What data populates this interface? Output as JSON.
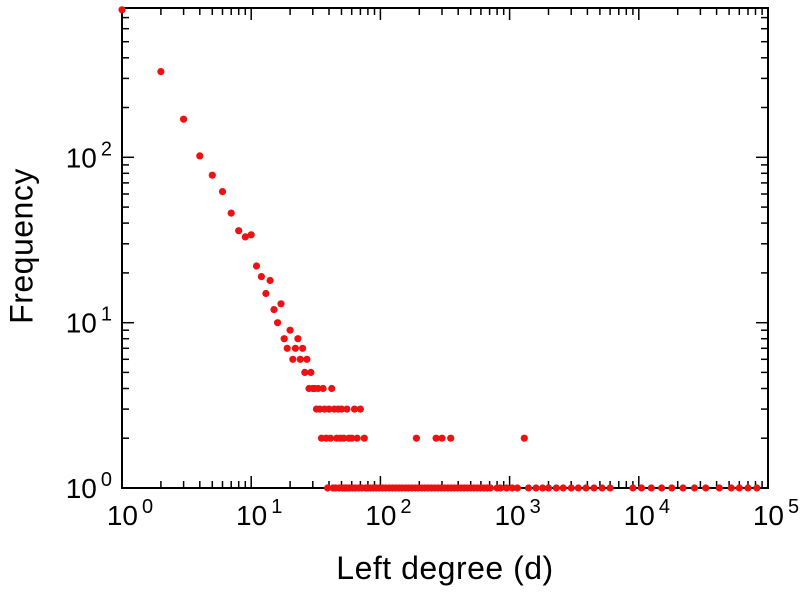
{
  "figure": {
    "background": "#ffffff"
  },
  "chart_data": {
    "type": "scatter",
    "title": "",
    "xlabel": "Left degree (d)",
    "ylabel": "Frequency",
    "x_scale": "log",
    "y_scale": "log",
    "xlim": [
      1,
      100000
    ],
    "ylim": [
      1,
      800
    ],
    "grid": false,
    "legend": "none",
    "x_tick_exponents": [
      0,
      1,
      2,
      3,
      4,
      5
    ],
    "y_tick_exponents": [
      0,
      1,
      2
    ],
    "tick_label_base": "10",
    "axis_color": "#000000",
    "marker": {
      "shape": "circle",
      "color": "#ee1111",
      "radius": 3.6
    },
    "points": [
      [
        1,
        780
      ],
      [
        2,
        330
      ],
      [
        3,
        170
      ],
      [
        4,
        102
      ],
      [
        5,
        78
      ],
      [
        6,
        62
      ],
      [
        7,
        46
      ],
      [
        8,
        36
      ],
      [
        9,
        33
      ],
      [
        10,
        34
      ],
      [
        11,
        22
      ],
      [
        12,
        19
      ],
      [
        13,
        15
      ],
      [
        14,
        18
      ],
      [
        15,
        12
      ],
      [
        16,
        10
      ],
      [
        17,
        13
      ],
      [
        18,
        8
      ],
      [
        19,
        7
      ],
      [
        20,
        9
      ],
      [
        21,
        6
      ],
      [
        22,
        7
      ],
      [
        23,
        8
      ],
      [
        24,
        6
      ],
      [
        25,
        7
      ],
      [
        26,
        5
      ],
      [
        27,
        6
      ],
      [
        28,
        4
      ],
      [
        29,
        5
      ],
      [
        30,
        4
      ],
      [
        31,
        4
      ],
      [
        32,
        3
      ],
      [
        33,
        4
      ],
      [
        34,
        3
      ],
      [
        35,
        2
      ],
      [
        36,
        4
      ],
      [
        37,
        3
      ],
      [
        38,
        2
      ],
      [
        39,
        1
      ],
      [
        40,
        3
      ],
      [
        41,
        2
      ],
      [
        42,
        4
      ],
      [
        43,
        1
      ],
      [
        44,
        3
      ],
      [
        45,
        1
      ],
      [
        46,
        2
      ],
      [
        47,
        3
      ],
      [
        48,
        1
      ],
      [
        49,
        2
      ],
      [
        50,
        3
      ],
      [
        51,
        1
      ],
      [
        52,
        2
      ],
      [
        53,
        1
      ],
      [
        54,
        1
      ],
      [
        55,
        3
      ],
      [
        56,
        1
      ],
      [
        57,
        2
      ],
      [
        58,
        1
      ],
      [
        60,
        2
      ],
      [
        61,
        1
      ],
      [
        63,
        3
      ],
      [
        64,
        1
      ],
      [
        66,
        2
      ],
      [
        68,
        1
      ],
      [
        70,
        3
      ],
      [
        72,
        1
      ],
      [
        75,
        2
      ],
      [
        77,
        1
      ],
      [
        80,
        1
      ],
      [
        84,
        1
      ],
      [
        88,
        1
      ],
      [
        93,
        1
      ],
      [
        98,
        1
      ],
      [
        104,
        1
      ],
      [
        110,
        1
      ],
      [
        117,
        1
      ],
      [
        124,
        1
      ],
      [
        131,
        1
      ],
      [
        139,
        1
      ],
      [
        147,
        1
      ],
      [
        156,
        1
      ],
      [
        165,
        1
      ],
      [
        175,
        1
      ],
      [
        186,
        1
      ],
      [
        190,
        2
      ],
      [
        197,
        1
      ],
      [
        209,
        1
      ],
      [
        221,
        1
      ],
      [
        234,
        1
      ],
      [
        248,
        1
      ],
      [
        263,
        1
      ],
      [
        270,
        2
      ],
      [
        279,
        1
      ],
      [
        296,
        1
      ],
      [
        300,
        2
      ],
      [
        314,
        1
      ],
      [
        333,
        1
      ],
      [
        350,
        2
      ],
      [
        353,
        1
      ],
      [
        374,
        1
      ],
      [
        396,
        1
      ],
      [
        420,
        1
      ],
      [
        445,
        1
      ],
      [
        472,
        1
      ],
      [
        500,
        1
      ],
      [
        530,
        1
      ],
      [
        562,
        1
      ],
      [
        596,
        1
      ],
      [
        632,
        1
      ],
      [
        670,
        1
      ],
      [
        710,
        1
      ],
      [
        800,
        1
      ],
      [
        850,
        1
      ],
      [
        950,
        1
      ],
      [
        1050,
        1
      ],
      [
        1150,
        1
      ],
      [
        1300,
        2
      ],
      [
        1400,
        1
      ],
      [
        1600,
        1
      ],
      [
        1800,
        1
      ],
      [
        2000,
        1
      ],
      [
        2300,
        1
      ],
      [
        2600,
        1
      ],
      [
        3000,
        1
      ],
      [
        3400,
        1
      ],
      [
        3900,
        1
      ],
      [
        4500,
        1
      ],
      [
        5200,
        1
      ],
      [
        6000,
        1
      ],
      [
        9000,
        1
      ],
      [
        10500,
        1
      ],
      [
        12500,
        1
      ],
      [
        15000,
        1
      ],
      [
        18000,
        1
      ],
      [
        22000,
        1
      ],
      [
        27000,
        1
      ],
      [
        33000,
        1
      ],
      [
        42000,
        1
      ],
      [
        52000,
        1
      ],
      [
        60000,
        1
      ],
      [
        70000,
        1
      ],
      [
        82000,
        1
      ]
    ]
  }
}
